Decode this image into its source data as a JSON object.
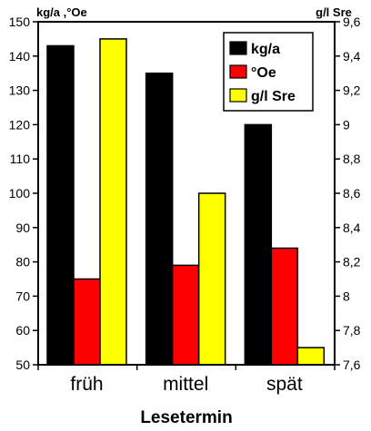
{
  "chart_data": {
    "type": "bar",
    "categories": [
      "früh",
      "mittel",
      "spät"
    ],
    "xlabel": "Lesetermin",
    "ylabel_left": "kg/a ,°Oe",
    "ylabel_right": "g/l Sre",
    "ylim_left": [
      50,
      150
    ],
    "ylim_right": [
      7.6,
      9.6
    ],
    "yticks_left": [
      "50",
      "60",
      "70",
      "80",
      "90",
      "100",
      "110",
      "120",
      "130",
      "140",
      "150"
    ],
    "yticks_right": [
      "7,6",
      "7,8",
      "8",
      "8,2",
      "8,4",
      "8,6",
      "8,8",
      "9",
      "9,2",
      "9,4",
      "9,6"
    ],
    "legend_position": "top-right",
    "grid": false,
    "series": [
      {
        "name": "kg/a",
        "axis": "left",
        "color": "#000000",
        "values": [
          143,
          135,
          120
        ]
      },
      {
        "name": "°Oe",
        "axis": "left",
        "color": "#ff0000",
        "values": [
          75,
          79,
          84
        ]
      },
      {
        "name": "g/l Sre",
        "axis": "right",
        "color": "#ffff00",
        "values": [
          9.5,
          8.6,
          7.7
        ]
      }
    ]
  }
}
